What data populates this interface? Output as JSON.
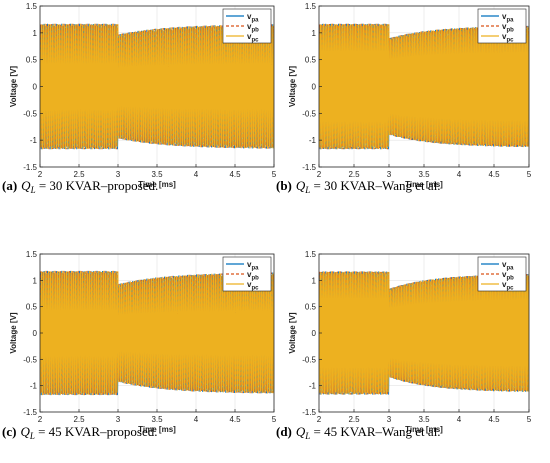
{
  "colors": {
    "va": "#0072BD",
    "vb": "#D95319",
    "vc": "#EDB120"
  },
  "chart_data": [
    {
      "type": "line",
      "caption_prefix": "(a)",
      "caption_eq": "Q",
      "caption_sub": "L",
      "caption_rest": " = 30 KVAR–proposed.",
      "xlabel": "Time [ms]",
      "ylabel": "Voltage [V]",
      "xlim": [
        2,
        5
      ],
      "ylim": [
        -1.5,
        1.5
      ],
      "xticks": [
        "2",
        "2.5",
        "3",
        "3.5",
        "4",
        "4.5",
        "5"
      ],
      "yticks": [
        "1.5",
        "1",
        "0.5",
        "0",
        "-0.5",
        "-1",
        "-1.5"
      ],
      "legend_position": "top-right",
      "series": [
        {
          "name": "v",
          "sub": "pa"
        },
        {
          "name": "v",
          "sub": "pb"
        },
        {
          "name": "v",
          "sub": "pc"
        }
      ],
      "envelope": {
        "pre_amplitude": 1.17,
        "post_start": 0.97,
        "post_end": 1.16,
        "event_time": 3
      }
    },
    {
      "type": "line",
      "caption_prefix": "(b)",
      "caption_eq": "Q",
      "caption_sub": "L",
      "caption_rest": " = 30 KVAR–Wang et al.",
      "xlabel": "Time [ms]",
      "ylabel": "Voltage [V]",
      "xlim": [
        2,
        5
      ],
      "ylim": [
        -1.5,
        1.5
      ],
      "xticks": [
        "2",
        "2.5",
        "3",
        "3.5",
        "4",
        "4.5",
        "5"
      ],
      "yticks": [
        "1.5",
        "1",
        "0.5",
        "0",
        "-0.5",
        "-1",
        "-1.5"
      ],
      "legend_position": "top-right",
      "series": [
        {
          "name": "v",
          "sub": "pa"
        },
        {
          "name": "v",
          "sub": "pb"
        },
        {
          "name": "v",
          "sub": "pc"
        }
      ],
      "envelope": {
        "pre_amplitude": 1.17,
        "post_start": 0.9,
        "post_end": 1.13,
        "event_time": 3
      }
    },
    {
      "type": "line",
      "caption_prefix": "(c)",
      "caption_eq": "Q",
      "caption_sub": "L",
      "caption_rest": " = 45 KVAR–proposed.",
      "xlabel": "Time [ms]",
      "ylabel": "Voltage [V]",
      "xlim": [
        2,
        5
      ],
      "ylim": [
        -1.5,
        1.5
      ],
      "xticks": [
        "2",
        "2.5",
        "3",
        "3.5",
        "4",
        "4.5",
        "5"
      ],
      "yticks": [
        "1.5",
        "1",
        "0.5",
        "0",
        "-0.5",
        "-1",
        "-1.5"
      ],
      "legend_position": "top-right",
      "series": [
        {
          "name": "v",
          "sub": "pa"
        },
        {
          "name": "v",
          "sub": "pb"
        },
        {
          "name": "v",
          "sub": "pc"
        }
      ],
      "envelope": {
        "pre_amplitude": 1.18,
        "post_start": 0.93,
        "post_end": 1.15,
        "event_time": 3
      }
    },
    {
      "type": "line",
      "caption_prefix": "(d)",
      "caption_eq": "Q",
      "caption_sub": "L",
      "caption_rest": " = 45 KVAR–Wang et al.",
      "xlabel": "Time [ms]",
      "ylabel": "Voltage [V]",
      "xlim": [
        2,
        5
      ],
      "ylim": [
        -1.5,
        1.5
      ],
      "xticks": [
        "2",
        "2.5",
        "3",
        "3.5",
        "4",
        "4.5",
        "5"
      ],
      "yticks": [
        "1.5",
        "1",
        "0.5",
        "0",
        "-0.5",
        "-1",
        "-1.5"
      ],
      "legend_position": "top-right",
      "series": [
        {
          "name": "v",
          "sub": "pa"
        },
        {
          "name": "v",
          "sub": "pb"
        },
        {
          "name": "v",
          "sub": "pc"
        }
      ],
      "envelope": {
        "pre_amplitude": 1.17,
        "post_start": 0.84,
        "post_end": 1.12,
        "event_time": 3
      }
    }
  ]
}
